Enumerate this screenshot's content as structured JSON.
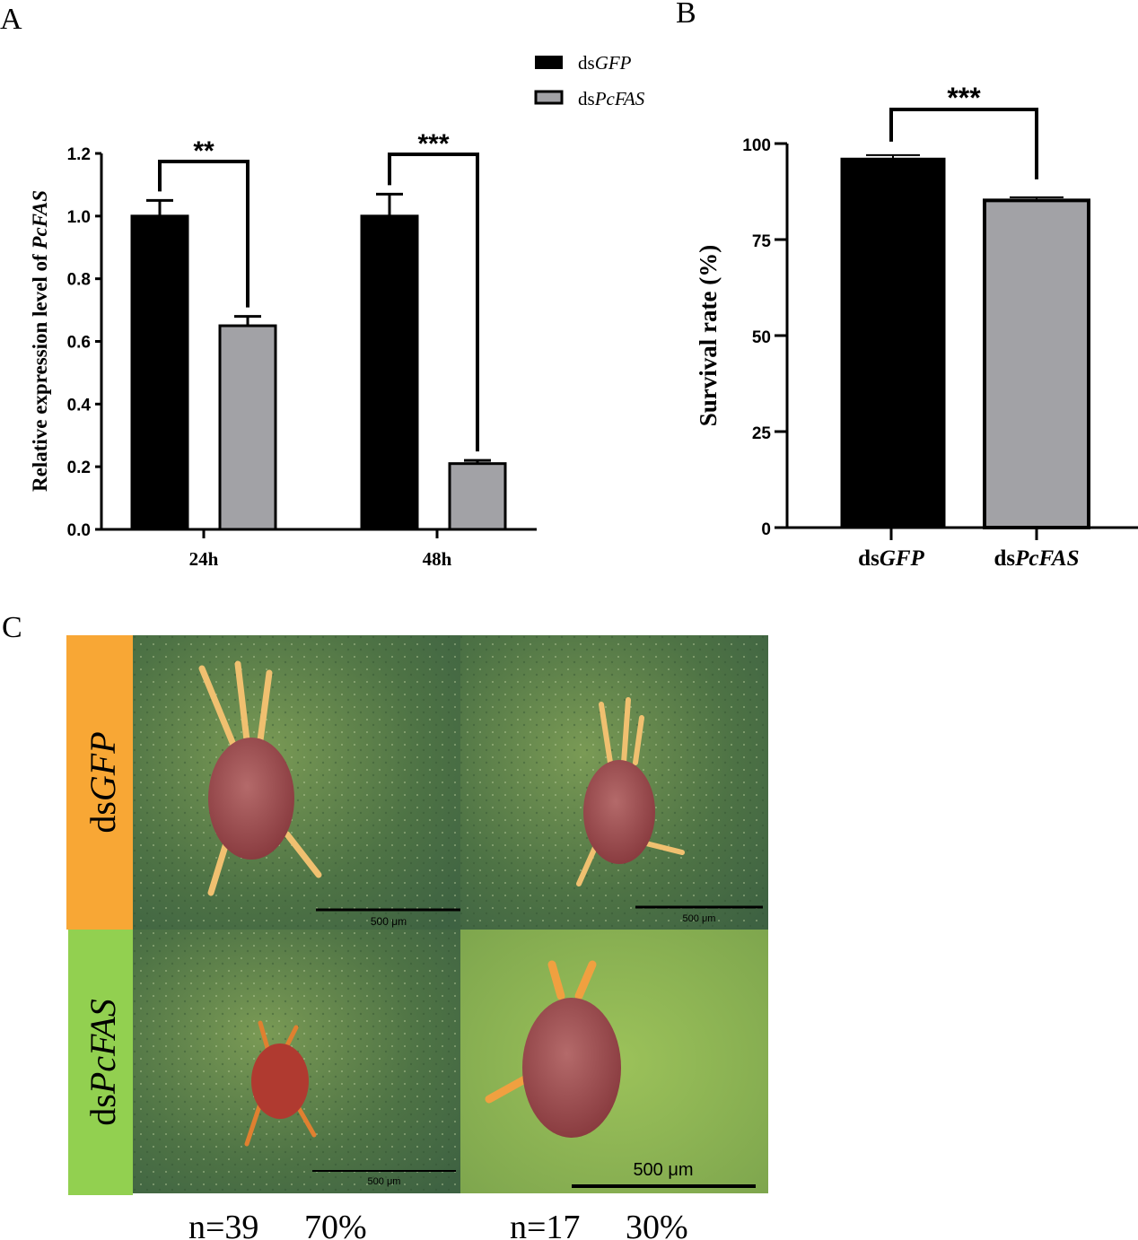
{
  "panel_labels": {
    "a": "A",
    "b": "B",
    "c": "C"
  },
  "legend": [
    {
      "prefix": "ds",
      "name": "GFP",
      "color": "#000000"
    },
    {
      "prefix": "ds",
      "name": "PcFAS",
      "color": "#a2a2a6"
    }
  ],
  "chart_data": [
    {
      "type": "bar",
      "panel": "A",
      "ylabel_prefix": "Relative expression level of ",
      "ylabel_italic": "PcFAS",
      "categories": [
        "24h",
        "48h"
      ],
      "ylim": [
        0,
        1.2
      ],
      "yticks": [
        "0.0",
        "0.2",
        "0.4",
        "0.6",
        "0.8",
        "1.0",
        "1.2"
      ],
      "series": [
        {
          "name": "dsGFP",
          "values": [
            1.0,
            1.0
          ],
          "errors": [
            0.05,
            0.07
          ],
          "color": "#000000"
        },
        {
          "name": "dsPcFAS",
          "values": [
            0.65,
            0.21
          ],
          "errors": [
            0.03,
            0.01
          ],
          "color": "#a2a2a6"
        }
      ],
      "significance": [
        "**",
        "***"
      ]
    },
    {
      "type": "bar",
      "panel": "B",
      "ylabel": "Survival rate (%)",
      "categories": [
        {
          "prefix": "ds",
          "name": "GFP"
        },
        {
          "prefix": "ds",
          "name": "PcFAS"
        }
      ],
      "ylim": [
        0,
        100
      ],
      "yticks": [
        "0",
        "25",
        "50",
        "75",
        "100"
      ],
      "values": [
        96.2,
        85.2
      ],
      "errors": [
        0.8,
        0.8
      ],
      "colors": [
        "#000000",
        "#a2a2a6"
      ],
      "significance": "***"
    }
  ],
  "panel_c": {
    "rows": [
      {
        "prefix": "ds",
        "name": "GFP",
        "color": "#f8a735"
      },
      {
        "prefix": "ds",
        "name": "PcFAS",
        "color": "#92d050"
      }
    ],
    "scale_bar": "500 μm",
    "columns": [
      {
        "n": "n=39",
        "percent": "70%"
      },
      {
        "n": "n=17",
        "percent": "30%"
      }
    ]
  }
}
